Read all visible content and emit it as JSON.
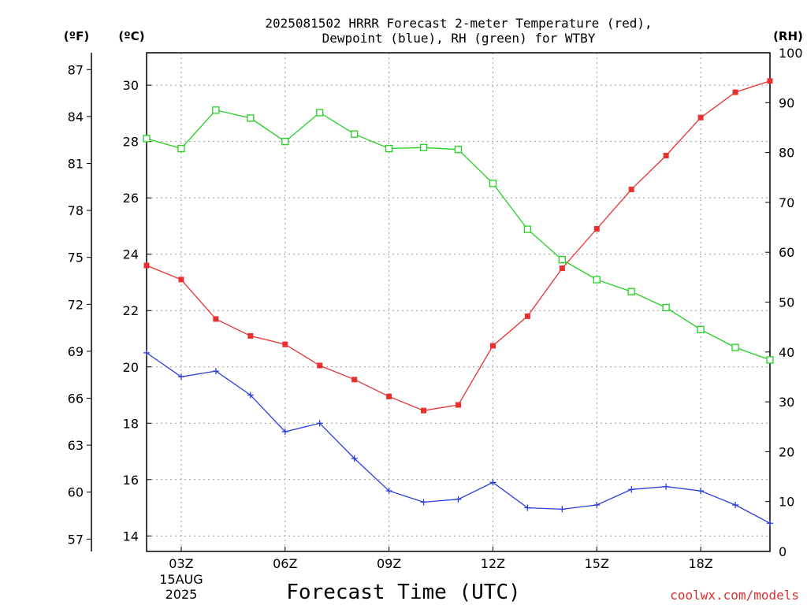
{
  "chart_data": {
    "type": "line",
    "title_line1": "2025081502 HRRR Forecast 2-meter Temperature (red),",
    "title_line2": "Dewpoint (blue), RH (green) for WTBY",
    "xlabel": "Forecast Time (UTC)",
    "credit": "coolwx.com/models",
    "units": {
      "fahrenheit": "(ºF)",
      "celsius": "(ºC)",
      "rh": "(RH)"
    },
    "x_hours": [
      2,
      3,
      4,
      5,
      6,
      7,
      8,
      9,
      10,
      11,
      12,
      13,
      14,
      15,
      16,
      17,
      18,
      19,
      20
    ],
    "xlim": [
      2,
      20
    ],
    "x_ticks": [
      {
        "hour": 3,
        "label": "03Z",
        "date": "15AUG",
        "year": "2025"
      },
      {
        "hour": 6,
        "label": "06Z"
      },
      {
        "hour": 9,
        "label": "09Z"
      },
      {
        "hour": 12,
        "label": "12Z"
      },
      {
        "hour": 15,
        "label": "15Z"
      },
      {
        "hour": 18,
        "label": "18Z"
      }
    ],
    "ylim_celsius": [
      13.45,
      31.15
    ],
    "yticks_celsius": [
      14,
      16,
      18,
      20,
      22,
      24,
      26,
      28,
      30
    ],
    "yticks_fahrenheit": [
      57,
      60,
      63,
      66,
      69,
      72,
      75,
      78,
      81,
      84,
      87
    ],
    "ylim_rh": [
      0,
      100
    ],
    "yticks_rh": [
      0,
      10,
      20,
      30,
      40,
      50,
      60,
      70,
      80,
      90,
      100
    ],
    "series": [
      {
        "name": "Temperature",
        "axis": "celsius",
        "color": "#e83030",
        "marker": "filled-square",
        "values": [
          23.6,
          23.1,
          21.7,
          21.1,
          20.8,
          20.05,
          19.55,
          18.95,
          18.45,
          18.65,
          20.75,
          21.8,
          23.5,
          24.9,
          26.3,
          27.5,
          28.85,
          29.75,
          30.15
        ]
      },
      {
        "name": "Dewpoint",
        "axis": "celsius",
        "color": "#2a3ee0",
        "marker": "plus",
        "values": [
          20.5,
          19.65,
          19.85,
          19.0,
          17.7,
          18.0,
          16.75,
          15.6,
          15.2,
          15.3,
          15.9,
          15.0,
          14.95,
          15.1,
          15.65,
          15.75,
          15.6,
          15.1,
          14.45
        ]
      },
      {
        "name": "RH",
        "axis": "rh",
        "color": "#22d022",
        "marker": "open-square",
        "values": [
          82.8,
          80.8,
          88.5,
          86.9,
          82.2,
          88.0,
          83.7,
          80.8,
          81.0,
          80.6,
          73.8,
          64.6,
          58.5,
          54.5,
          52.1,
          48.9,
          44.5,
          40.9,
          38.4
        ]
      }
    ]
  }
}
